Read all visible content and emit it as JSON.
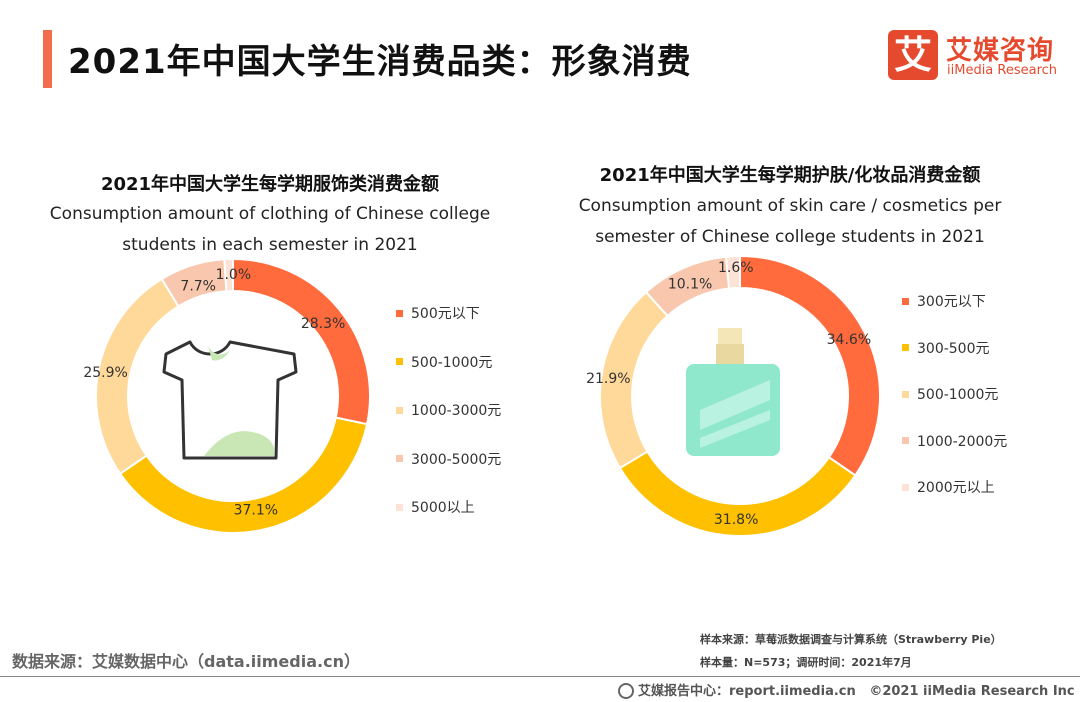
{
  "header": {
    "title": "2021年中国大学生消费品类：形象消费",
    "brand_cn": "艾媒咨询",
    "brand_en": "iiMedia Research",
    "brand_logo_char": "艾"
  },
  "chart_data": [
    {
      "type": "pie",
      "donut": true,
      "title": "2021年中国大学生每学期服饰类消费金额",
      "subtitle": "Consumption amount of clothing of Chinese college students in each semester in 2021",
      "categories": [
        "500元以下",
        "500-1000元",
        "1000-3000元",
        "3000-5000元",
        "5000以上"
      ],
      "values": [
        28.3,
        37.1,
        25.9,
        7.7,
        1.0
      ],
      "labels": [
        "28.3%",
        "37.1%",
        "25.9%",
        "7.7%",
        "1.0%"
      ],
      "colors": [
        "#ff6b3d",
        "#ffc000",
        "#ffd999",
        "#f9c7ad",
        "#fde3d6"
      ],
      "legend_position": "right",
      "center_icon": "tshirt"
    },
    {
      "type": "pie",
      "donut": true,
      "title": "2021年中国大学生每学期护肤/化妆品消费金额",
      "subtitle": "Consumption amount of skin care / cosmetics per semester of Chinese college students in 2021",
      "categories": [
        "300元以下",
        "300-500元",
        "500-1000元",
        "1000-2000元",
        "2000元以上"
      ],
      "values": [
        34.6,
        31.8,
        21.9,
        10.1,
        1.6
      ],
      "labels": [
        "34.6%",
        "31.8%",
        "21.9%",
        "10.1%",
        "1.6%"
      ],
      "colors": [
        "#ff6b3d",
        "#ffc000",
        "#ffd999",
        "#f9c7ad",
        "#fde3d6"
      ],
      "legend_position": "right",
      "center_icon": "perfume-bottle"
    }
  ],
  "footer": {
    "source": "数据来源：艾媒数据中心（data.iimedia.cn）",
    "sample_source": "样本来源：草莓派数据调查与计算系统（Strawberry Pie）",
    "sample_size": "样本量：N=573；调研时间：2021年7月",
    "report_center": "艾媒报告中心：report.iimedia.cn",
    "copyright": "©2021  iiMedia Research  Inc"
  }
}
